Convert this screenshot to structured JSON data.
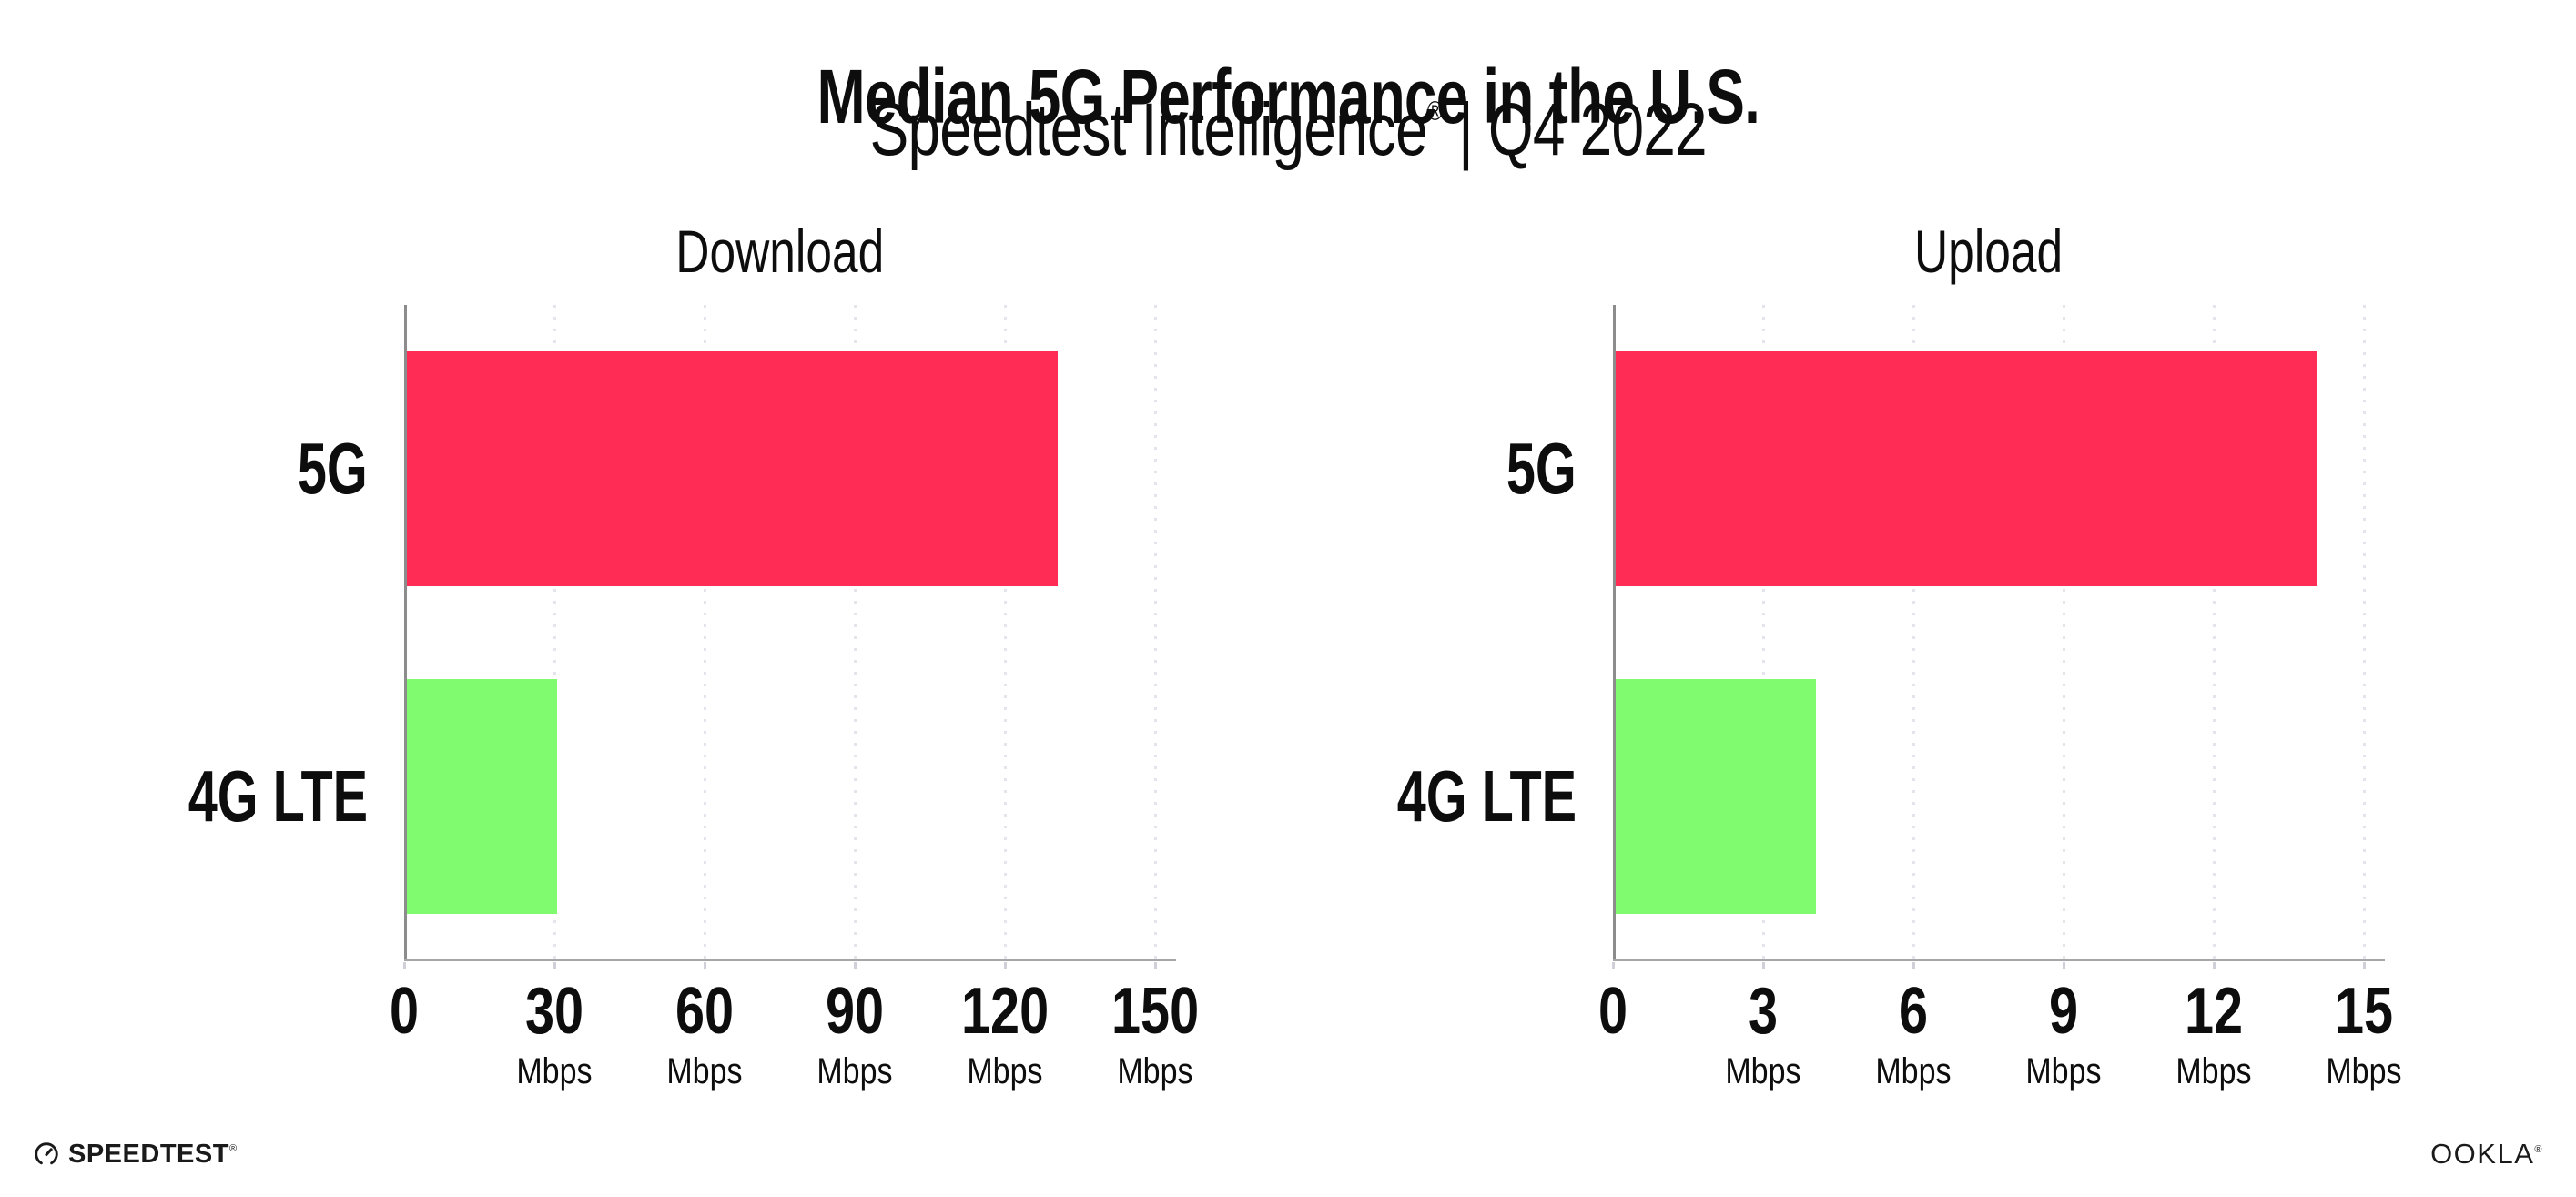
{
  "header": {
    "title": "Median 5G Performance in the U.S.",
    "subtitle_brand": "Speedtest Intelligence",
    "subtitle_mark": "®",
    "subtitle_rest": " | Q4 2022"
  },
  "chart_data": [
    {
      "type": "bar",
      "orientation": "horizontal",
      "title": "Download",
      "categories": [
        "5G",
        "4G LTE"
      ],
      "values": [
        130,
        30
      ],
      "unit": "Mbps",
      "xlim": [
        0,
        150
      ],
      "xticks": [
        0,
        30,
        60,
        90,
        120,
        150
      ],
      "xtick_labels": [
        "0",
        "30",
        "60",
        "90",
        "120",
        "150"
      ],
      "bar_colors": [
        "#ff2d55",
        "#80fa6e"
      ],
      "grid": "dotted-vertical",
      "legend": "none"
    },
    {
      "type": "bar",
      "orientation": "horizontal",
      "title": "Upload",
      "categories": [
        "5G",
        "4G LTE"
      ],
      "values": [
        14,
        4
      ],
      "unit": "Mbps",
      "xlim": [
        0,
        15
      ],
      "xticks": [
        0,
        3,
        6,
        9,
        12,
        15
      ],
      "xtick_labels": [
        "0",
        "3",
        "6",
        "9",
        "12",
        "15"
      ],
      "bar_colors": [
        "#ff2d55",
        "#80fa6e"
      ],
      "grid": "dotted-vertical",
      "legend": "none"
    }
  ],
  "footer": {
    "speedtest": "SPEEDTEST",
    "speedtest_mark": "®",
    "ookla": "OOKLA",
    "ookla_mark": "®"
  },
  "colors": {
    "bar_5g": "#ff2d55",
    "bar_4g_lte": "#80fa6e",
    "gridline": "#e4e4ec",
    "y_axis": "#8c8c8c",
    "x_axis": "#a6a6a6",
    "tick_mark": "#d0d0d8",
    "text": "#0d0d0d",
    "background": "#ffffff"
  }
}
